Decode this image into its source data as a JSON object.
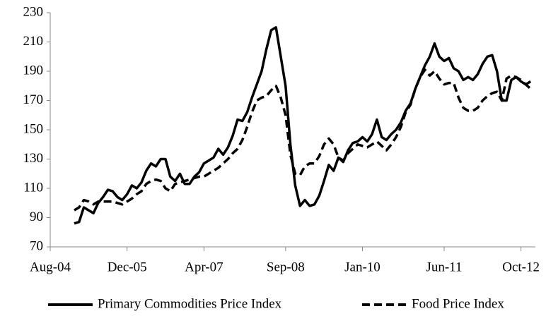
{
  "chart_data": {
    "type": "line",
    "x": [
      "2005-01",
      "2005-02",
      "2005-03",
      "2005-04",
      "2005-05",
      "2005-06",
      "2005-07",
      "2005-08",
      "2005-09",
      "2005-10",
      "2005-11",
      "2005-12",
      "2006-01",
      "2006-02",
      "2006-03",
      "2006-04",
      "2006-05",
      "2006-06",
      "2006-07",
      "2006-08",
      "2006-09",
      "2006-10",
      "2006-11",
      "2006-12",
      "2007-01",
      "2007-02",
      "2007-03",
      "2007-04",
      "2007-05",
      "2007-06",
      "2007-07",
      "2007-08",
      "2007-09",
      "2007-10",
      "2007-11",
      "2007-12",
      "2008-01",
      "2008-02",
      "2008-03",
      "2008-04",
      "2008-05",
      "2008-06",
      "2008-07",
      "2008-08",
      "2008-09",
      "2008-10",
      "2008-11",
      "2008-12",
      "2009-01",
      "2009-02",
      "2009-03",
      "2009-04",
      "2009-05",
      "2009-06",
      "2009-07",
      "2009-08",
      "2009-09",
      "2009-10",
      "2009-11",
      "2009-12",
      "2010-01",
      "2010-02",
      "2010-03",
      "2010-04",
      "2010-05",
      "2010-06",
      "2010-07",
      "2010-08",
      "2010-09",
      "2010-10",
      "2010-11",
      "2010-12",
      "2011-01",
      "2011-02",
      "2011-03",
      "2011-04",
      "2011-05",
      "2011-06",
      "2011-07",
      "2011-08",
      "2011-09",
      "2011-10",
      "2011-11",
      "2011-12",
      "2012-01",
      "2012-02",
      "2012-03",
      "2012-04",
      "2012-05",
      "2012-06",
      "2012-07",
      "2012-08",
      "2012-09",
      "2012-10",
      "2012-11",
      "2012-12"
    ],
    "series": [
      {
        "name": "Primary Commodities Price Index",
        "color": "#000000",
        "dash": false,
        "values": [
          86,
          87,
          97,
          95,
          93,
          100,
          104,
          109,
          108,
          104,
          102,
          106,
          112,
          110,
          114,
          122,
          127,
          125,
          130,
          130,
          118,
          115,
          120,
          113,
          113,
          118,
          121,
          127,
          129,
          131,
          137,
          133,
          138,
          146,
          157,
          156,
          162,
          172,
          181,
          190,
          205,
          218,
          220,
          200,
          180,
          140,
          112,
          98,
          102,
          98,
          99,
          105,
          115,
          126,
          122,
          131,
          128,
          136,
          141,
          142,
          145,
          142,
          147,
          157,
          145,
          143,
          147,
          150,
          155,
          163,
          168,
          178,
          186,
          194,
          200,
          209,
          200,
          197,
          199,
          192,
          190,
          184,
          186,
          184,
          188,
          195,
          200,
          201,
          190,
          170,
          170,
          184,
          186,
          183,
          181,
          183
        ]
      },
      {
        "name": "Food Price Index",
        "color": "#000000",
        "dash": true,
        "values": [
          95,
          97,
          102,
          101,
          99,
          101,
          101,
          101,
          101,
          100,
          99,
          101,
          103,
          106,
          108,
          113,
          115,
          116,
          115,
          110,
          108,
          113,
          114,
          115,
          116,
          117,
          118,
          118,
          120,
          122,
          124,
          127,
          130,
          134,
          137,
          143,
          152,
          162,
          170,
          172,
          173,
          177,
          180,
          172,
          160,
          133,
          120,
          119,
          125,
          127,
          127,
          132,
          140,
          144,
          140,
          131,
          129,
          134,
          137,
          140,
          139,
          138,
          140,
          142,
          139,
          136,
          140,
          145,
          152,
          162,
          167,
          178,
          186,
          191,
          187,
          190,
          185,
          181,
          182,
          182,
          172,
          165,
          163,
          163,
          165,
          170,
          173,
          175,
          176,
          170,
          185,
          187,
          186,
          184,
          181,
          178
        ]
      }
    ],
    "xlim": [
      "2004-08",
      "2013-01"
    ],
    "xticks": [
      {
        "value": "2004-08",
        "label": "Aug-04"
      },
      {
        "value": "2005-12",
        "label": "Dec-05"
      },
      {
        "value": "2007-04",
        "label": "Apr-07"
      },
      {
        "value": "2008-09",
        "label": "Sep-08"
      },
      {
        "value": "2010-01",
        "label": "Jan-10"
      },
      {
        "value": "2011-06",
        "label": "Jun-11"
      },
      {
        "value": "2012-10",
        "label": "Oct-12"
      }
    ],
    "ylim": [
      70,
      230
    ],
    "yticks": [
      70,
      90,
      110,
      130,
      150,
      170,
      190,
      210,
      230
    ],
    "legend": "bottom"
  }
}
